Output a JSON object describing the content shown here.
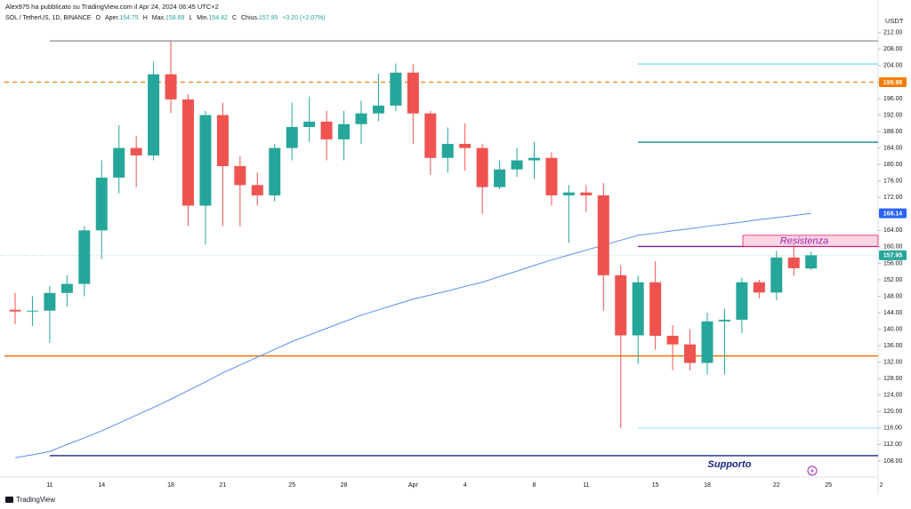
{
  "header": {
    "publisher": "Alex975 ha pubblicato su TradingView.com il Apr 24, 2024 06:45 UTC+2",
    "symbol": "SOL / TetherUS, 1D, BINANCE",
    "ohlc": [
      {
        "key": "O",
        "label": "Aper.",
        "value": "154.75"
      },
      {
        "key": "H",
        "label": "Max.",
        "value": "158.89"
      },
      {
        "key": "L",
        "label": "Min.",
        "value": "154.42"
      },
      {
        "key": "C",
        "label": "Chius.",
        "value": "157.95"
      }
    ],
    "change": "+3.20 (+2.07%)"
  },
  "chart_data": {
    "type": "candlestick",
    "currency": "USDT",
    "categories": [
      null,
      null,
      "11",
      null,
      null,
      "14",
      null,
      null,
      null,
      "18",
      null,
      null,
      "21",
      null,
      null,
      null,
      "25",
      null,
      null,
      "28",
      null,
      null,
      null,
      "Apr",
      null,
      null,
      "4",
      null,
      null,
      null,
      "8",
      null,
      null,
      "11",
      null,
      null,
      null,
      "15",
      null,
      null,
      "18",
      null,
      null,
      null,
      "22",
      null,
      null
    ],
    "extra_categories": [
      "25",
      null,
      null,
      "2"
    ],
    "open": [
      144.7,
      144.3,
      144.5,
      148.8,
      151,
      164,
      176.8,
      184,
      182.2,
      201.9,
      195.8,
      170,
      192,
      179.6,
      175,
      172.5,
      184,
      189.1,
      190.4,
      186.1,
      189.8,
      192.4,
      194.3,
      202.3,
      192.4,
      181.6,
      185,
      184,
      174.5,
      178.8,
      181,
      181.6,
      172.5,
      173.2,
      172.5,
      153.1,
      138.5,
      151.4,
      138.4,
      136.3,
      131.8,
      141.9,
      142.3,
      151.4,
      148.9,
      157.4,
      154.75
    ],
    "high": [
      148.8,
      148,
      150.5,
      153.1,
      165,
      181,
      189.5,
      187,
      205,
      210,
      197,
      193,
      195,
      182,
      178,
      185,
      195,
      196.5,
      193,
      193,
      195.5,
      202,
      204.5,
      204.3,
      193,
      189,
      190,
      185,
      181,
      184,
      185.5,
      183,
      175,
      175,
      175.5,
      155.5,
      153,
      156.5,
      141,
      140,
      144,
      145,
      152.5,
      152,
      159,
      160.5,
      158.89
    ],
    "low": [
      141.2,
      140.8,
      136.7,
      145.5,
      148,
      157,
      173,
      174.5,
      181,
      192.5,
      165,
      160.5,
      165,
      165,
      170,
      171,
      181,
      185.5,
      181,
      181,
      185,
      190.5,
      193,
      185,
      177.5,
      178,
      178.5,
      168,
      174,
      177,
      176.5,
      170,
      161,
      168.5,
      144.5,
      116,
      131.5,
      135,
      130,
      130,
      129,
      129,
      139,
      147.5,
      147,
      153,
      154.42
    ],
    "close": [
      144.3,
      144.5,
      148.8,
      151,
      164,
      176.8,
      184,
      182.2,
      201.9,
      195.8,
      170,
      192,
      179.6,
      175,
      172.5,
      184,
      189.1,
      190.4,
      186.1,
      189.8,
      192.4,
      194.3,
      202.3,
      192.4,
      181.6,
      185,
      184,
      174.5,
      178.8,
      181,
      181.6,
      172.5,
      173.2,
      172.5,
      153.1,
      138.5,
      151.4,
      138.4,
      136.3,
      131.8,
      141.9,
      142.3,
      151.4,
      148.9,
      157.4,
      154.8,
      157.95
    ],
    "up_color": "#26a69a",
    "down_color": "#ef5350",
    "ma": {
      "color": "#5b8def",
      "values": [
        108.8,
        109.5,
        110.3,
        112,
        113.6,
        115.3,
        117.2,
        119.1,
        121,
        123,
        125.1,
        127.2,
        129.4,
        131.3,
        133.2,
        135.1,
        137,
        138.6,
        140.2,
        141.8,
        143.4,
        144.7,
        146,
        147.3,
        148.3,
        149.3,
        150.4,
        151.4,
        152.8,
        154.1,
        155.5,
        156.8,
        158,
        159.2,
        160.4,
        161.6,
        162.8,
        163.3,
        163.9,
        164.4,
        165,
        165.5,
        166,
        166.6,
        167.1,
        167.6,
        168.14
      ]
    },
    "ylim": [
      104.1,
      213.9
    ],
    "yticks": [
      {
        "value": 212,
        "label": "212.00"
      },
      {
        "value": 208,
        "label": "208.00"
      },
      {
        "value": 204,
        "label": "204.00"
      },
      {
        "value": 196,
        "label": "196.00"
      },
      {
        "value": 192,
        "label": "192.00"
      },
      {
        "value": 188,
        "label": "188.00"
      },
      {
        "value": 184,
        "label": "184.00"
      },
      {
        "value": 180,
        "label": "180.00"
      },
      {
        "value": 176,
        "label": "176.00"
      },
      {
        "value": 172,
        "label": "172.00"
      },
      {
        "value": 164,
        "label": "164.00"
      },
      {
        "value": 160,
        "label": "160.00"
      },
      {
        "value": 156,
        "label": "156.00"
      },
      {
        "value": 152,
        "label": "152.00"
      },
      {
        "value": 148,
        "label": "148.00"
      },
      {
        "value": 144,
        "label": "144.00"
      },
      {
        "value": 140,
        "label": "140.00"
      },
      {
        "value": 136,
        "label": "136.00"
      },
      {
        "value": 132,
        "label": "132.00"
      },
      {
        "value": 128,
        "label": "128.00"
      },
      {
        "value": 124,
        "label": "124.00"
      },
      {
        "value": 120,
        "label": "120.00"
      },
      {
        "value": 116,
        "label": "116.00"
      },
      {
        "value": 112,
        "label": "112.00"
      },
      {
        "value": 108,
        "label": "108.00"
      }
    ],
    "grid": false,
    "levels": [
      {
        "value": 210,
        "color": "#9598a1",
        "dashed": false
      },
      {
        "value": 199.98,
        "color": "#f57c00",
        "dashed": true
      },
      {
        "value": 204.4,
        "color": "#80deea",
        "dashed": false
      },
      {
        "value": 185.4,
        "color": "#2a8fa8",
        "dashed": false
      },
      {
        "value": 160.1,
        "color": "#7b1fa2",
        "dashed": false
      },
      {
        "value": 133.5,
        "color": "#ef6c00",
        "dashed": false
      },
      {
        "value": 116,
        "color": "#b2ebf2",
        "dashed": false
      },
      {
        "value": 109.3,
        "color": "#1a237e",
        "dashed": false
      }
    ],
    "resistance": {
      "label": "Resistenza",
      "low": 160.1,
      "high": 162.8
    },
    "support_label": "Supporto"
  },
  "footer": {
    "brand": "TradingView"
  }
}
